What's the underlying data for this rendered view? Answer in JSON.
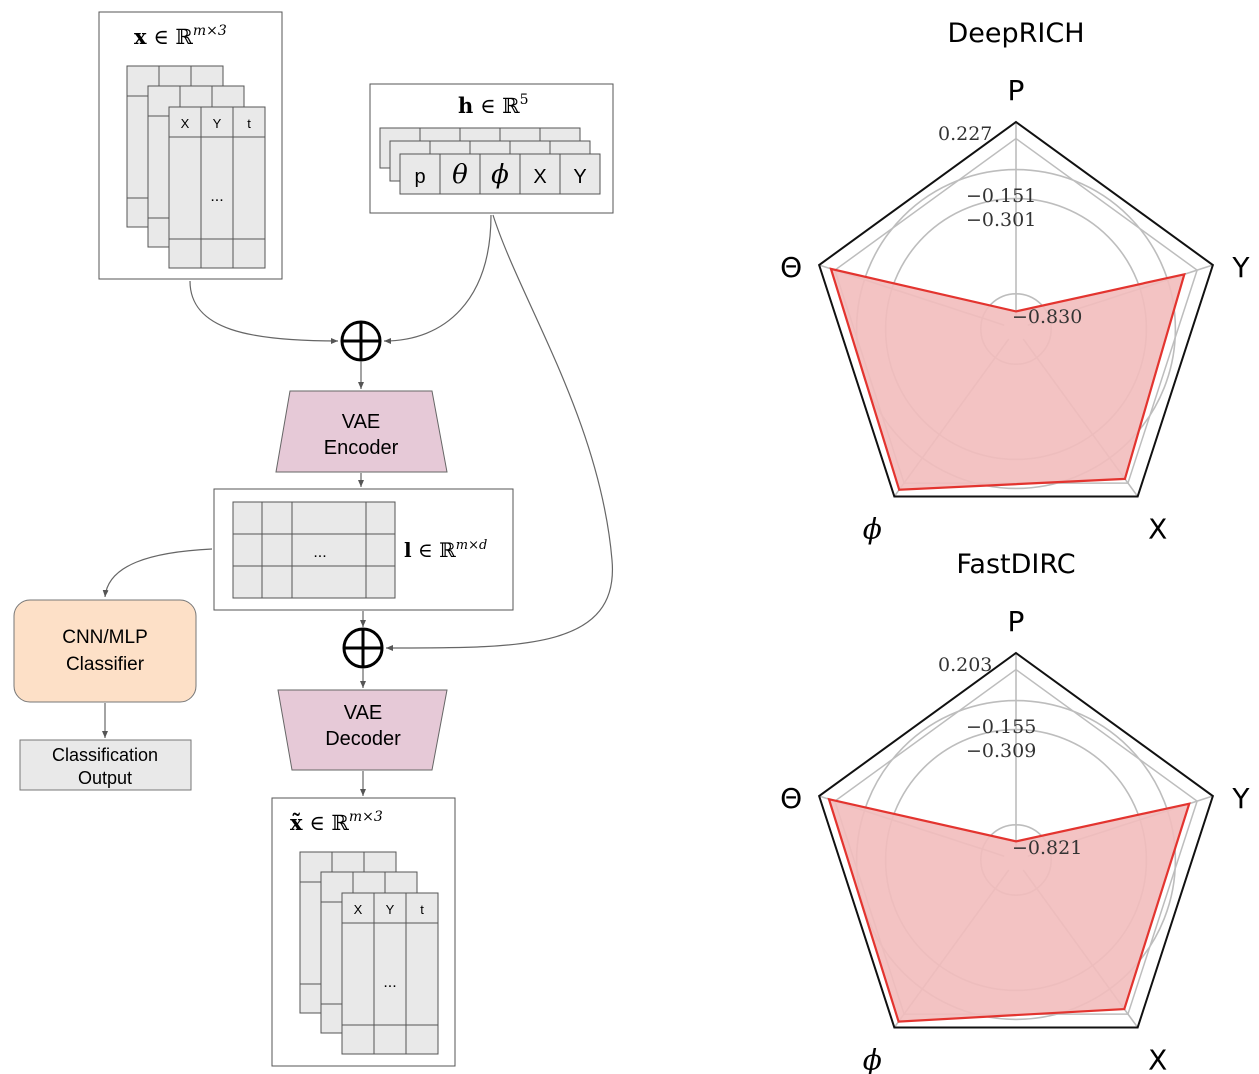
{
  "colors": {
    "node_fill": "#e6c9d7",
    "classifier_fill": "#fde0c7",
    "output_fill": "#e9e9e9",
    "cell_fill": "#e9e9e9",
    "radar_fill": "#f2bcbc",
    "radar_line": "#e3342f",
    "grid": "#bdbdbd"
  },
  "diagram": {
    "x_label_bold": "x",
    "x_label_rest": " ∈ ℝ",
    "x_label_sup": "m×3",
    "h_label_bold": "h",
    "h_label_rest": " ∈ ℝ",
    "h_label_sup": "5",
    "l_label_bold": "l",
    "l_label_rest": " ∈ ℝ",
    "l_label_sup": "m×d",
    "xt_label_bold": "x̃",
    "xt_label_rest": " ∈ ℝ",
    "xt_label_sup": "m×3",
    "x_cols": [
      "X",
      "Y",
      "t"
    ],
    "xt_cols": [
      "X",
      "Y",
      "t"
    ],
    "h_cells": [
      "p",
      "θ",
      "ϕ",
      "X",
      "Y"
    ],
    "ellipsis": "...",
    "encoder_line1": "VAE",
    "encoder_line2": "Encoder",
    "decoder_line1": "VAE",
    "decoder_line2": "Decoder",
    "classifier_line1": "CNN/MLP",
    "classifier_line2": "Classifier",
    "output_line1": "Classification",
    "output_line2": "Output"
  },
  "chart_data": [
    {
      "type": "radar",
      "title": "DeepRICH",
      "axes": [
        "P",
        "Y",
        "X",
        "ϕ",
        "Θ"
      ],
      "tick_labels": [
        "0.227",
        "−0.151",
        "−0.301",
        "−0.830"
      ],
      "values": [
        -0.83,
        0.71,
        0.79,
        0.92,
        0.88
      ],
      "grid": true
    },
    {
      "type": "radar",
      "title": "FastDIRC",
      "axes": [
        "P",
        "Y",
        "X",
        "ϕ",
        "Θ"
      ],
      "tick_labels": [
        "0.203",
        "−0.155",
        "−0.309",
        "−0.821"
      ],
      "values": [
        -0.82,
        0.76,
        0.78,
        0.93,
        0.9
      ],
      "grid": true
    }
  ]
}
